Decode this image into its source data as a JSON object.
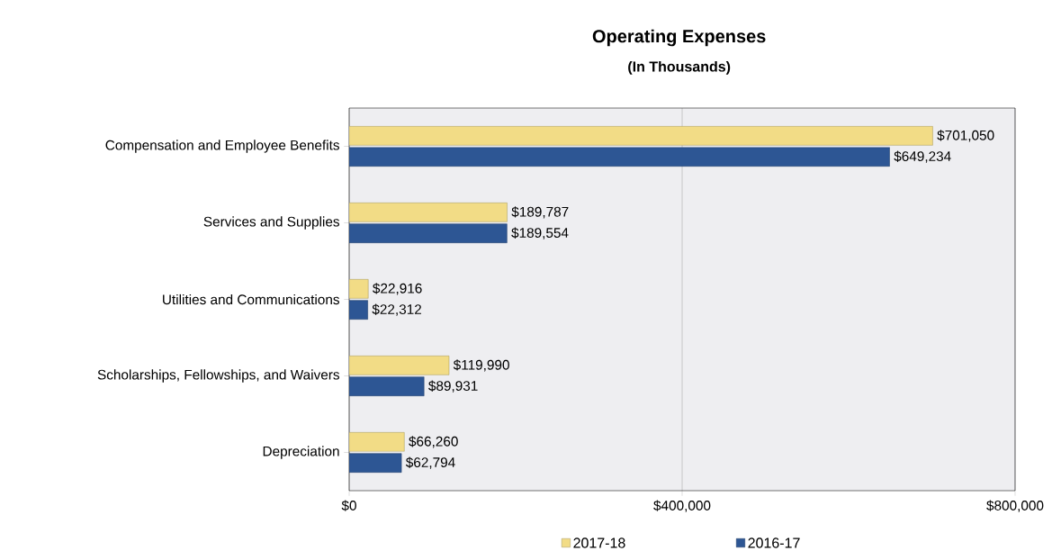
{
  "chart_data": {
    "type": "bar",
    "orientation": "horizontal",
    "title": "Operating Expenses",
    "subtitle": "(In Thousands)",
    "categories": [
      "Compensation and Employee Benefits",
      "Services and Supplies",
      "Utilities and Communications",
      "Scholarships, Fellowships, and Waivers",
      "Depreciation"
    ],
    "series": [
      {
        "name": "2017-18",
        "color": "#f2dc86",
        "values": [
          701050,
          189787,
          22916,
          119990,
          66260
        ],
        "value_labels": [
          "$701,050",
          "$189,787",
          "$22,916",
          "$119,990",
          "$66,260"
        ]
      },
      {
        "name": "2016-17",
        "color": "#2d5694",
        "values": [
          649234,
          189554,
          22312,
          89931,
          62794
        ],
        "value_labels": [
          "$649,234",
          "$189,554",
          "$22,312",
          "$89,931",
          "$62,794"
        ]
      }
    ],
    "xlim": [
      0,
      800000
    ],
    "xticks": [
      {
        "value": 0,
        "label": "$0"
      },
      {
        "value": 400000,
        "label": "$400,000"
      },
      {
        "value": 800000,
        "label": "$800,000"
      }
    ],
    "grid": "x",
    "legend": "bottom"
  }
}
